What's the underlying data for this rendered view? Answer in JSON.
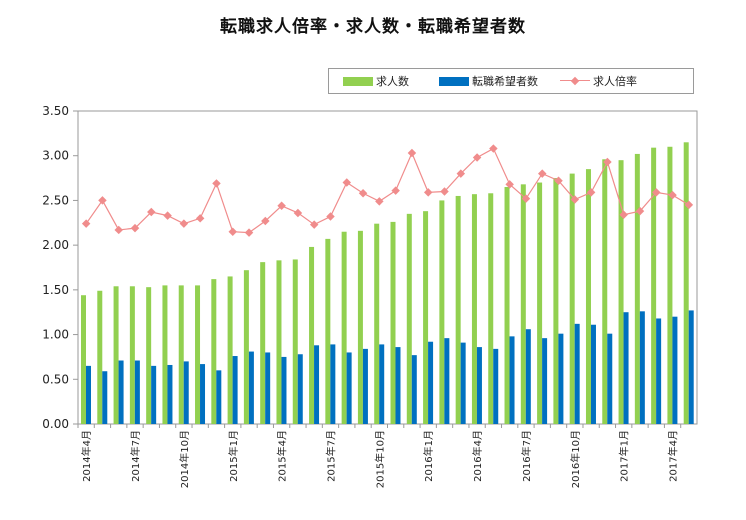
{
  "chart_data": {
    "type": "bar",
    "title": "転職求人倍率・求人数・転職希望者数",
    "xlabel": "",
    "ylabel": "",
    "ylim": [
      0,
      3.5
    ],
    "yticks": [
      "0.00",
      "0.50",
      "1.00",
      "1.50",
      "2.00",
      "2.50",
      "3.00",
      "3.50"
    ],
    "grid": false,
    "legend_position": "top-right",
    "x_tick_labels": [
      "2014年4月",
      "2014年7月",
      "2014年10月",
      "2015年1月",
      "2015年4月",
      "2015年7月",
      "2015年10月",
      "2016年1月",
      "2016年4月",
      "2016年7月",
      "2016年10月",
      "2017年1月",
      "2017年4月"
    ],
    "categories": [
      "2014年4月",
      "2014年5月",
      "2014年6月",
      "2014年7月",
      "2014年8月",
      "2014年9月",
      "2014年10月",
      "2014年11月",
      "2014年12月",
      "2015年1月",
      "2015年2月",
      "2015年3月",
      "2015年4月",
      "2015年5月",
      "2015年6月",
      "2015年7月",
      "2015年8月",
      "2015年9月",
      "2015年10月",
      "2015年11月",
      "2015年12月",
      "2016年1月",
      "2016年2月",
      "2016年3月",
      "2016年4月",
      "2016年5月",
      "2016年6月",
      "2016年7月",
      "2016年8月",
      "2016年9月",
      "2016年10月",
      "2016年11月",
      "2016年12月",
      "2017年1月",
      "2017年2月",
      "2017年3月",
      "2017年4月",
      "2017年5月"
    ],
    "series": [
      {
        "name": "求人数",
        "type": "bar",
        "color": "#92d050",
        "values": [
          1.44,
          1.49,
          1.54,
          1.54,
          1.53,
          1.55,
          1.55,
          1.55,
          1.62,
          1.65,
          1.72,
          1.81,
          1.83,
          1.84,
          1.98,
          2.07,
          2.15,
          2.16,
          2.24,
          2.26,
          2.35,
          2.38,
          2.5,
          2.55,
          2.57,
          2.58,
          2.65,
          2.68,
          2.7,
          2.75,
          2.8,
          2.85,
          2.96,
          2.95,
          3.02,
          3.09,
          3.1,
          3.15
        ]
      },
      {
        "name": "転職希望者数",
        "type": "bar",
        "color": "#0070c0",
        "values": [
          0.65,
          0.59,
          0.71,
          0.71,
          0.65,
          0.66,
          0.7,
          0.67,
          0.6,
          0.76,
          0.81,
          0.8,
          0.75,
          0.78,
          0.88,
          0.89,
          0.8,
          0.84,
          0.89,
          0.86,
          0.77,
          0.92,
          0.96,
          0.91,
          0.86,
          0.84,
          0.98,
          1.06,
          0.96,
          1.01,
          1.12,
          1.11,
          1.01,
          1.25,
          1.26,
          1.18,
          1.2,
          1.27
        ]
      },
      {
        "name": "求人倍率",
        "type": "line",
        "color": "#f08c8c",
        "values": [
          2.24,
          2.5,
          2.17,
          2.19,
          2.37,
          2.33,
          2.24,
          2.3,
          2.69,
          2.15,
          2.14,
          2.27,
          2.44,
          2.36,
          2.23,
          2.32,
          2.7,
          2.58,
          2.49,
          2.61,
          3.03,
          2.59,
          2.6,
          2.8,
          2.98,
          3.08,
          2.68,
          2.52,
          2.8,
          2.72,
          2.51,
          2.59,
          2.93,
          2.34,
          2.38,
          2.59,
          2.56,
          2.45
        ]
      }
    ]
  }
}
